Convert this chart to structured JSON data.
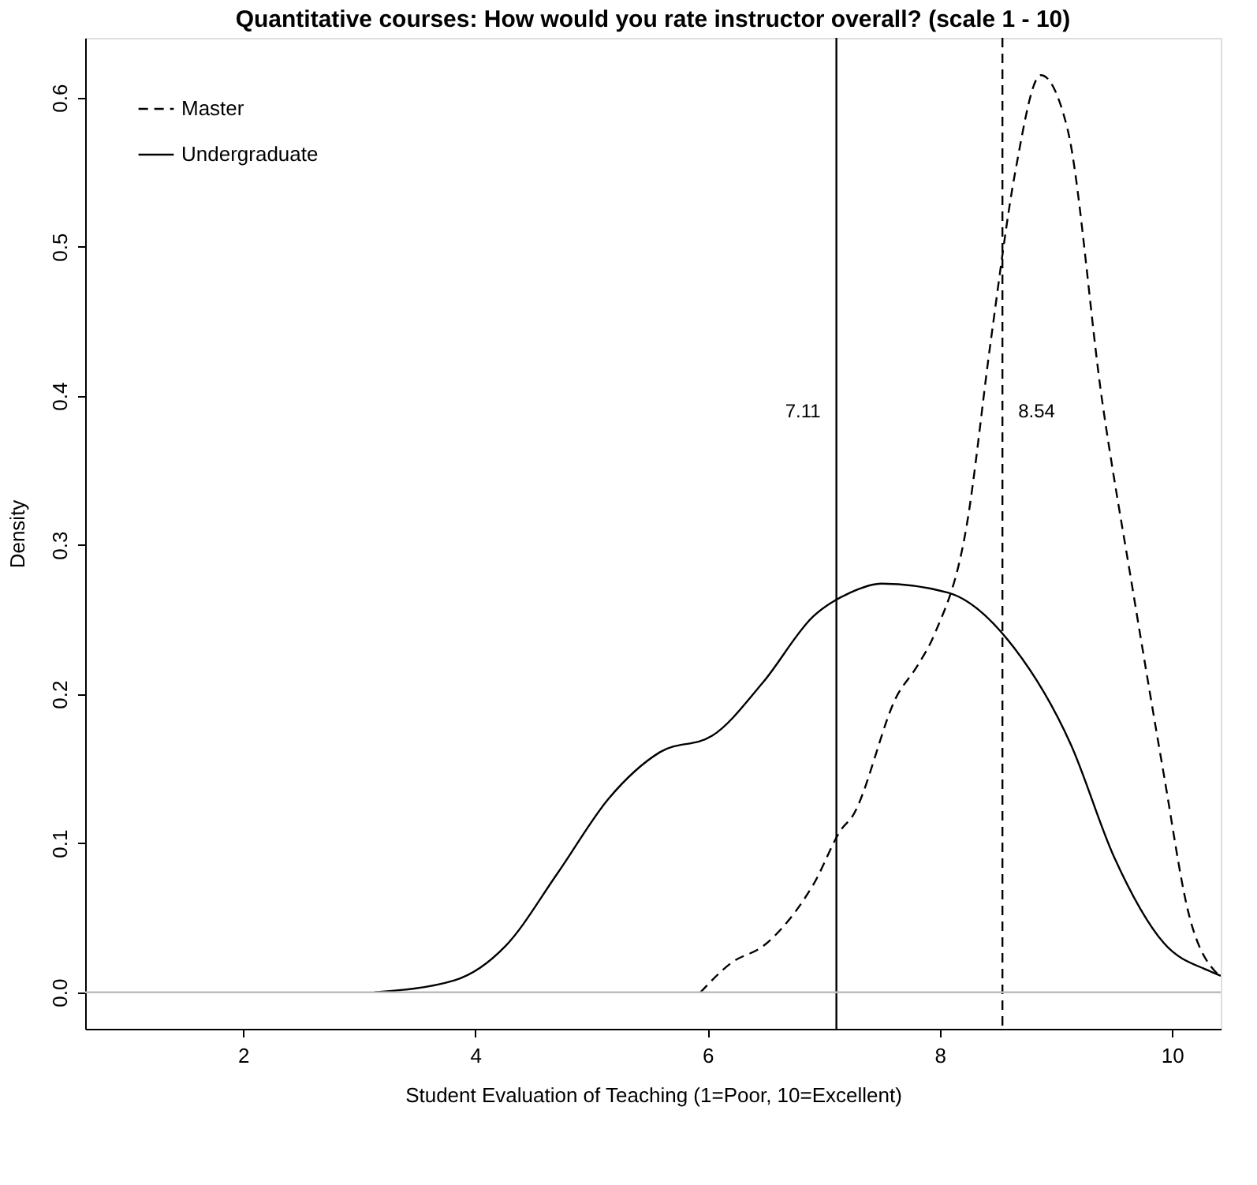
{
  "chart_data": {
    "type": "line",
    "title": "Quantitative courses: How would you rate instructor overall? (scale 1 - 10)",
    "xlabel": "Student Evaluation of Teaching (1=Poor, 10=Excellent)",
    "ylabel": "Density",
    "series": [
      {
        "name": "Master",
        "color": "#000000",
        "line_style": "dashed",
        "x": [
          5.94,
          6.21,
          6.48,
          6.91,
          7.17,
          7.23,
          7.64,
          7.8,
          7.96,
          8.23,
          8.44,
          8.65,
          8.87,
          9.1,
          9.4,
          9.66,
          9.93,
          10.14,
          10.42
        ],
        "values": [
          0,
          0.02,
          0.031,
          0.072,
          0.111,
          0.116,
          0.2,
          0.218,
          0.241,
          0.312,
          0.437,
          0.55,
          0.615,
          0.579,
          0.396,
          0.271,
          0.146,
          0.054,
          0.01
        ]
      },
      {
        "name": "Undergraduate",
        "color": "#000000",
        "line_style": "solid",
        "x": [
          3.13,
          3.82,
          4.26,
          4.71,
          5.15,
          5.59,
          6.04,
          6.48,
          6.91,
          7.23,
          7.5,
          8.07,
          8.64,
          9.13,
          9.5,
          9.93,
          10.33,
          10.42
        ],
        "values": [
          0,
          0.008,
          0.031,
          0.08,
          0.13,
          0.161,
          0.172,
          0.208,
          0.252,
          0.268,
          0.274,
          0.268,
          0.231,
          0.166,
          0.091,
          0.033,
          0.014,
          0.011
        ]
      }
    ],
    "ref_lines": [
      {
        "axis": "x",
        "value": 7.11,
        "color": "#000000",
        "line_style": "solid"
      },
      {
        "axis": "x",
        "value": 8.54,
        "color": "#000000",
        "line_style": "dashed"
      },
      {
        "axis": "y",
        "value": 0,
        "color": "#bebebe",
        "line_style": "solid"
      }
    ],
    "annotations": [
      {
        "text": "7.11",
        "x": 7.11,
        "y": 0.39
      },
      {
        "text": "8.54",
        "x": 8.54,
        "y": 0.39
      }
    ],
    "xlim": [
      0.64,
      10.42
    ],
    "ylim": [
      -0.0245,
      0.64
    ],
    "xticks": [
      2,
      4,
      6,
      8,
      10
    ],
    "yticks": [
      {
        "value": 0,
        "label": "0.0"
      },
      0.1,
      0.2,
      0.3,
      0.4,
      0.5,
      0.6
    ],
    "legend": "top left",
    "grid": false,
    "marker": "none"
  }
}
